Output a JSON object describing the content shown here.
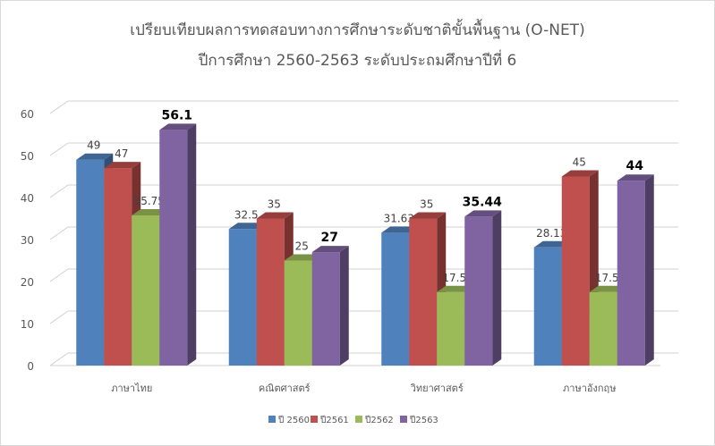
{
  "chart_data": {
    "type": "bar",
    "title": "เปรียบเทียบผลการทดสอบทางการศึกษาระดับชาติขั้นพื้นฐาน  (O-NET)",
    "subtitle": "ปีการศึกษา  2560-2563 ระดับประถมศึกษาปีที่  6",
    "categories": [
      "ภาษาไทย",
      "คณิตศาสตร์",
      "วิทยาศาสตร์",
      "ภาษาอังกฤษ"
    ],
    "series": [
      {
        "name": "ปี 2560",
        "color": "#4F81BD",
        "values": [
          49,
          32.5,
          31.63,
          28.13
        ],
        "labels": [
          "49",
          "32.5",
          "31.63",
          "28.13"
        ]
      },
      {
        "name": "ปี2561",
        "color": "#C0504D",
        "values": [
          47,
          35,
          35,
          45
        ],
        "labels": [
          "47",
          "35",
          "35",
          "45"
        ]
      },
      {
        "name": "ปี2562",
        "color": "#9BBB59",
        "values": [
          35.75,
          25,
          17.5,
          17.5
        ],
        "labels": [
          "35.75",
          "25",
          "17.5",
          "17.5"
        ]
      },
      {
        "name": "ปี2563",
        "color": "#8064A2",
        "values": [
          56.1,
          27,
          35.44,
          44
        ],
        "labels": [
          "56.1",
          "27",
          "35.44",
          "44"
        ]
      }
    ],
    "ylim": [
      0,
      60
    ],
    "yticks": [
      "0",
      "10",
      "20",
      "30",
      "40",
      "50",
      "60"
    ],
    "grid": true,
    "legend": "bottom"
  }
}
